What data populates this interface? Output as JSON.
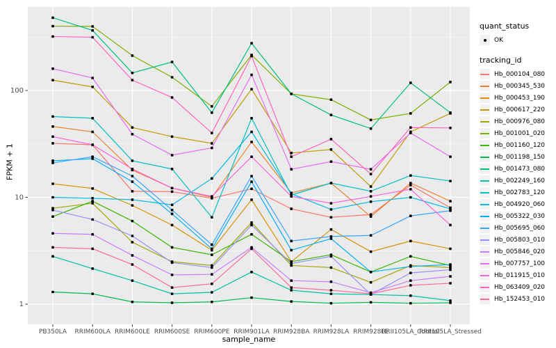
{
  "chart_data": {
    "type": "line",
    "title": "",
    "xlabel": "sample_name",
    "ylabel": "FPKM + 1",
    "y_scale": "log10",
    "y_ticks": [
      1,
      10,
      100
    ],
    "y_minor": [
      3.162,
      31.62,
      316.2
    ],
    "ylim": [
      0.75,
      600
    ],
    "grid": "on",
    "legend_position": "right",
    "panel_bg": "#EBEBEB",
    "grid_color": "#FFFFFF",
    "marker_color": "#000000",
    "categories": [
      "PB350LA",
      "RRIM600LA",
      "RRIM600LE",
      "RRIM600SE",
      "RRIM600PE",
      "RRIM901LA",
      "RRIM928BA",
      "RRIM928LA",
      "RRIM928LE",
      "RRII105LA_Control",
      "RRII105LA_Stressed"
    ],
    "series": [
      {
        "name": "Hb_000104_080",
        "color": "#F8766D",
        "values": [
          32,
          31,
          11.4,
          11.3,
          9.8,
          12,
          7.8,
          6.5,
          6.9,
          13,
          8.0
        ]
      },
      {
        "name": "Hb_000345_530",
        "color": "#EA8331",
        "values": [
          46,
          41,
          18,
          12.2,
          10,
          33,
          11,
          13.6,
          6.6,
          13.6,
          9.2
        ]
      },
      {
        "name": "Hb_000453_190",
        "color": "#D89000",
        "values": [
          13.4,
          12.1,
          8.4,
          5.5,
          3.2,
          9.5,
          2.5,
          5.0,
          3.1,
          3.9,
          3.3
        ]
      },
      {
        "name": "Hb_000617_220",
        "color": "#C09B00",
        "values": [
          125,
          108,
          45,
          37,
          32,
          103,
          26,
          28,
          12.6,
          41,
          61
        ]
      },
      {
        "name": "Hb_000976_080",
        "color": "#A3A500",
        "values": [
          7.9,
          8.8,
          3.8,
          2.5,
          2.3,
          5.8,
          2.3,
          2.2,
          1.6,
          2.3,
          2.2
        ]
      },
      {
        "name": "Hb_001001_020",
        "color": "#7CAE00",
        "values": [
          400,
          398,
          212,
          133,
          71,
          215,
          93,
          82,
          53,
          61,
          120
        ]
      },
      {
        "name": "Hb_001160_120",
        "color": "#39B600",
        "values": [
          6.6,
          9.2,
          6.0,
          3.4,
          2.9,
          4.5,
          2.5,
          2.9,
          2.0,
          2.8,
          2.3
        ]
      },
      {
        "name": "Hb_001198_150",
        "color": "#00BB4E",
        "values": [
          1.3,
          1.25,
          1.05,
          1.03,
          1.05,
          1.15,
          1.06,
          1.02,
          1.04,
          1.02,
          1.03
        ]
      },
      {
        "name": "Hb_001473_080",
        "color": "#00BF7D",
        "values": [
          480,
          365,
          146,
          185,
          62,
          277,
          93,
          59,
          44,
          118,
          62
        ]
      },
      {
        "name": "Hb_002249_160",
        "color": "#00C1A3",
        "values": [
          2.8,
          2.15,
          1.66,
          1.25,
          1.29,
          2.0,
          1.35,
          1.25,
          1.23,
          1.2,
          1.08
        ]
      },
      {
        "name": "Hb_002783_120",
        "color": "#00BFC4",
        "values": [
          57,
          55,
          22,
          18.4,
          6.5,
          55,
          10.5,
          13.6,
          11.4,
          16,
          14.2
        ]
      },
      {
        "name": "Hb_004920_060",
        "color": "#00BAE0",
        "values": [
          10,
          9.8,
          9.5,
          8.5,
          15,
          41,
          10.8,
          7.7,
          9.1,
          10,
          7.8
        ]
      },
      {
        "name": "Hb_005322_030",
        "color": "#00B0F6",
        "values": [
          22,
          23,
          14,
          7.0,
          3.3,
          14,
          3.2,
          4.1,
          2.0,
          2.25,
          2.35
        ]
      },
      {
        "name": "Hb_005695_060",
        "color": "#35A2FF",
        "values": [
          21,
          24,
          15.8,
          7.6,
          3.6,
          15.8,
          3.9,
          4.3,
          4.4,
          6.7,
          7.5
        ]
      },
      {
        "name": "Hb_005803_010",
        "color": "#9590FF",
        "values": [
          7.6,
          6.2,
          4.35,
          2.45,
          2.2,
          5.5,
          2.4,
          2.8,
          1.23,
          1.96,
          2.1
        ]
      },
      {
        "name": "Hb_005846_020",
        "color": "#C77CFF",
        "values": [
          4.6,
          4.5,
          2.86,
          1.88,
          1.9,
          3.4,
          1.66,
          1.62,
          1.28,
          1.66,
          1.82
        ]
      },
      {
        "name": "Hb_007757_100",
        "color": "#E76BF3",
        "values": [
          160,
          131,
          39,
          24.8,
          29,
          140,
          18.3,
          21.6,
          18.3,
          40,
          24
        ]
      },
      {
        "name": "Hb_011915_010",
        "color": "#FA62DB",
        "values": [
          37,
          31,
          18.4,
          12.2,
          10.2,
          24,
          10.2,
          8.8,
          10.2,
          11.9,
          5.5
        ]
      },
      {
        "name": "Hb_063409_020",
        "color": "#FF62BC",
        "values": [
          320,
          315,
          125,
          86,
          40,
          210,
          24,
          35,
          16.5,
          45,
          44.6
        ]
      },
      {
        "name": "Hb_152453_010",
        "color": "#FF6A98",
        "values": [
          3.4,
          3.3,
          2.35,
          1.43,
          1.55,
          3.3,
          1.43,
          1.35,
          1.25,
          1.5,
          1.57
        ]
      }
    ]
  },
  "legend": {
    "quant_title": "quant_status",
    "ok_label": "OK",
    "tracking_title": "tracking_id"
  }
}
